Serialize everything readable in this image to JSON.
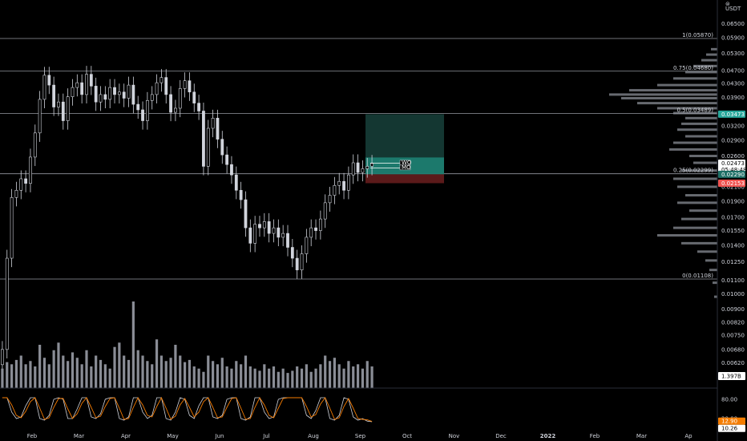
{
  "chart_data": {
    "type": "candlestick",
    "price_axis": {
      "currency": "USDT",
      "ticks": [
        "0.06500",
        "0.05900",
        "0.05300",
        "0.04700",
        "0.04300",
        "0.03900",
        "0.03500",
        "0.03200",
        "0.02900",
        "0.02600",
        "0.02100",
        "0.01900",
        "0.01700",
        "0.01550",
        "0.01400",
        "0.01250",
        "0.01100",
        "0.01000",
        "0.00900",
        "0.00820",
        "0.00750",
        "0.00680",
        "0.00620"
      ]
    },
    "time_axis": {
      "labels": [
        "Feb",
        "Mar",
        "Apr",
        "May",
        "Jun",
        "Jul",
        "Aug",
        "Sep",
        "Oct",
        "Nov",
        "Dec",
        "2022",
        "Feb",
        "Mar",
        "Ap"
      ]
    },
    "fib_levels": [
      {
        "label": "1(0.05870)",
        "price": 0.0587
      },
      {
        "label": "0.75(0.04680)",
        "price": 0.0468
      },
      {
        "label": "0.5(0.03489)",
        "price": 0.03489
      },
      {
        "label": "0.25(0.02299)",
        "price": 0.02299
      },
      {
        "label": "0(0.01108)",
        "price": 0.01108
      }
    ],
    "position": {
      "entry": 0.0229,
      "target": 0.03473,
      "stop": 0.02153
    },
    "price_tags": [
      {
        "text": "0.03473",
        "color": "#26a69a"
      },
      {
        "text": "0.02473",
        "color": "#ffffff",
        "sub": "05:48:48"
      },
      {
        "text": "0.02290",
        "color": "#1e6f66"
      },
      {
        "text": "0.02153",
        "color": "#ef5350"
      }
    ],
    "markers": [
      "WO",
      "MO"
    ],
    "volume": {
      "last_label": "1.397B"
    },
    "oscillator": {
      "ticks": [
        "80.00",
        "20.00"
      ],
      "values": [
        "12.90",
        "10.26"
      ]
    },
    "price_series": [
      {
        "week": 0,
        "close": 0.0068
      },
      {
        "week": 1,
        "close": 0.0128
      },
      {
        "week": 2,
        "close": 0.0195
      },
      {
        "week": 3,
        "close": 0.0205
      },
      {
        "week": 4,
        "close": 0.0222
      },
      {
        "week": 5,
        "close": 0.0215
      },
      {
        "week": 6,
        "close": 0.0258
      },
      {
        "week": 7,
        "close": 0.0305
      },
      {
        "week": 8,
        "close": 0.0385
      },
      {
        "week": 9,
        "close": 0.0455
      },
      {
        "week": 10,
        "close": 0.0425
      },
      {
        "week": 11,
        "close": 0.0365
      },
      {
        "week": 12,
        "close": 0.0378
      },
      {
        "week": 13,
        "close": 0.0332
      },
      {
        "week": 14,
        "close": 0.0392
      },
      {
        "week": 15,
        "close": 0.0418
      },
      {
        "week": 16,
        "close": 0.0432
      },
      {
        "week": 17,
        "close": 0.0398
      },
      {
        "week": 18,
        "close": 0.0458
      },
      {
        "week": 19,
        "close": 0.0422
      },
      {
        "week": 20,
        "close": 0.0378
      },
      {
        "week": 21,
        "close": 0.0398
      },
      {
        "week": 22,
        "close": 0.0385
      },
      {
        "week": 23,
        "close": 0.0418
      },
      {
        "week": 24,
        "close": 0.0398
      },
      {
        "week": 25,
        "close": 0.0405
      },
      {
        "week": 26,
        "close": 0.0388
      },
      {
        "week": 27,
        "close": 0.0425
      },
      {
        "week": 28,
        "close": 0.0372
      },
      {
        "week": 29,
        "close": 0.0358
      },
      {
        "week": 30,
        "close": 0.0332
      },
      {
        "week": 31,
        "close": 0.0382
      },
      {
        "week": 32,
        "close": 0.0398
      },
      {
        "week": 33,
        "close": 0.0432
      },
      {
        "week": 34,
        "close": 0.0448
      },
      {
        "week": 35,
        "close": 0.0398
      },
      {
        "week": 36,
        "close": 0.0352
      },
      {
        "week": 37,
        "close": 0.0362
      },
      {
        "week": 38,
        "close": 0.0415
      },
      {
        "week": 39,
        "close": 0.0438
      },
      {
        "week": 40,
        "close": 0.0405
      },
      {
        "week": 41,
        "close": 0.0375
      },
      {
        "week": 42,
        "close": 0.0355
      },
      {
        "week": 43,
        "close": 0.0242
      },
      {
        "week": 44,
        "close": 0.0315
      },
      {
        "week": 45,
        "close": 0.0338
      },
      {
        "week": 46,
        "close": 0.0292
      },
      {
        "week": 47,
        "close": 0.0262
      },
      {
        "week": 48,
        "close": 0.0245
      },
      {
        "week": 49,
        "close": 0.0228
      },
      {
        "week": 50,
        "close": 0.0205
      },
      {
        "week": 51,
        "close": 0.0192
      },
      {
        "week": 52,
        "close": 0.0158
      },
      {
        "week": 53,
        "close": 0.0142
      },
      {
        "week": 54,
        "close": 0.0162
      },
      {
        "week": 55,
        "close": 0.0158
      },
      {
        "week": 56,
        "close": 0.0165
      },
      {
        "week": 57,
        "close": 0.0152
      },
      {
        "week": 58,
        "close": 0.0158
      },
      {
        "week": 59,
        "close": 0.0148
      },
      {
        "week": 60,
        "close": 0.0152
      },
      {
        "week": 61,
        "close": 0.0138
      },
      {
        "week": 62,
        "close": 0.0128
      },
      {
        "week": 63,
        "close": 0.0118
      },
      {
        "week": 64,
        "close": 0.0132
      },
      {
        "week": 65,
        "close": 0.0148
      },
      {
        "week": 66,
        "close": 0.0158
      },
      {
        "week": 67,
        "close": 0.0155
      },
      {
        "week": 68,
        "close": 0.0168
      },
      {
        "week": 69,
        "close": 0.0188
      },
      {
        "week": 70,
        "close": 0.0198
      },
      {
        "week": 71,
        "close": 0.0212
      },
      {
        "week": 72,
        "close": 0.0218
      },
      {
        "week": 73,
        "close": 0.0205
      },
      {
        "week": 74,
        "close": 0.0228
      },
      {
        "week": 75,
        "close": 0.0248
      },
      {
        "week": 76,
        "close": 0.0232
      },
      {
        "week": 77,
        "close": 0.0238
      },
      {
        "week": 78,
        "close": 0.0242
      },
      {
        "week": 79,
        "close": 0.0247
      }
    ],
    "volume_series": [
      18,
      24,
      22,
      26,
      30,
      22,
      25,
      20,
      40,
      28,
      22,
      35,
      42,
      30,
      25,
      33,
      28,
      22,
      35,
      20,
      30,
      26,
      22,
      18,
      38,
      42,
      30,
      26,
      80,
      35,
      30,
      25,
      22,
      45,
      30,
      25,
      28,
      40,
      30,
      24,
      26,
      20,
      18,
      15,
      30,
      25,
      22,
      28,
      20,
      18,
      25,
      22,
      30,
      20,
      18,
      16,
      22,
      18,
      20,
      15,
      18,
      14,
      16,
      20,
      18,
      22,
      15,
      18,
      22,
      30,
      25,
      28,
      22,
      18,
      25,
      20,
      22,
      18,
      25,
      20
    ],
    "oscillator_series": [
      85,
      85,
      40,
      20,
      25,
      60,
      85,
      85,
      20,
      15,
      30,
      80,
      85,
      80,
      20,
      20,
      50,
      85,
      85,
      25,
      20,
      35,
      80,
      85,
      85,
      20,
      15,
      25,
      85,
      85,
      40,
      20,
      30,
      85,
      85,
      20,
      15,
      40,
      85,
      80,
      30,
      20,
      60,
      85,
      85,
      25,
      20,
      30,
      80,
      85,
      85,
      20,
      15,
      25,
      85,
      85,
      40,
      20,
      25,
      80,
      85,
      85,
      85,
      85,
      85,
      30,
      20,
      45,
      85,
      85,
      20,
      15,
      30,
      85,
      80,
      25,
      15,
      20,
      12,
      10
    ],
    "volume_profile": [
      {
        "price": 0.0545,
        "len": 8
      },
      {
        "price": 0.0525,
        "len": 14
      },
      {
        "price": 0.0505,
        "len": 20
      },
      {
        "price": 0.0485,
        "len": 30
      },
      {
        "price": 0.0465,
        "len": 40
      },
      {
        "price": 0.0445,
        "len": 55
      },
      {
        "price": 0.0425,
        "len": 75
      },
      {
        "price": 0.041,
        "len": 110
      },
      {
        "price": 0.0398,
        "len": 135
      },
      {
        "price": 0.0388,
        "len": 120
      },
      {
        "price": 0.0375,
        "len": 100
      },
      {
        "price": 0.0362,
        "len": 75
      },
      {
        "price": 0.035,
        "len": 55
      },
      {
        "price": 0.0338,
        "len": 40
      },
      {
        "price": 0.0325,
        "len": 45
      },
      {
        "price": 0.0312,
        "len": 50
      },
      {
        "price": 0.0298,
        "len": 40
      },
      {
        "price": 0.0285,
        "len": 55
      },
      {
        "price": 0.0272,
        "len": 60
      },
      {
        "price": 0.026,
        "len": 35
      },
      {
        "price": 0.0248,
        "len": 30
      },
      {
        "price": 0.0235,
        "len": 45
      },
      {
        "price": 0.0222,
        "len": 55
      },
      {
        "price": 0.021,
        "len": 50
      },
      {
        "price": 0.0198,
        "len": 40
      },
      {
        "price": 0.0188,
        "len": 50
      },
      {
        "price": 0.0178,
        "len": 35
      },
      {
        "price": 0.0168,
        "len": 45
      },
      {
        "price": 0.0158,
        "len": 55
      },
      {
        "price": 0.015,
        "len": 75
      },
      {
        "price": 0.0142,
        "len": 45
      },
      {
        "price": 0.0134,
        "len": 25
      },
      {
        "price": 0.0126,
        "len": 15
      },
      {
        "price": 0.0118,
        "len": 10
      },
      {
        "price": 0.0108,
        "len": 6
      },
      {
        "price": 0.0098,
        "len": 4
      }
    ]
  }
}
